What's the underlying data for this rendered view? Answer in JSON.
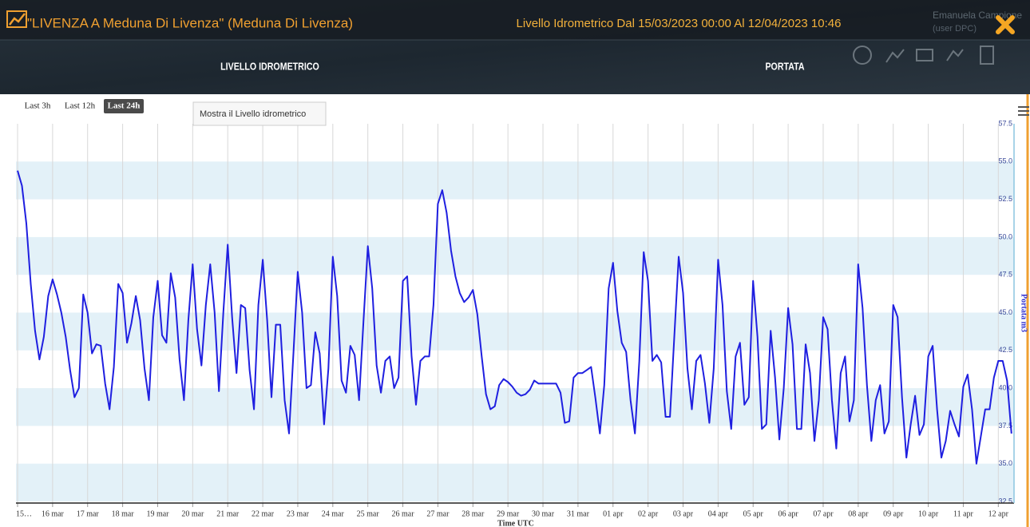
{
  "header": {
    "title": "\"LIVENZA A Meduna Di Livenza\" (Meduna Di Livenza)",
    "subtitle": "Livello Idrometrico Dal 15/03/2023 00:00 Al 12/04/2023 10:46",
    "user": "Emanuela Campione",
    "role": "(user DPC)"
  },
  "tabs": [
    "LIVELLO IDROMETRICO",
    "PORTATA"
  ],
  "range_buttons": [
    "Last 3h",
    "Last 12h",
    "Last 24h"
  ],
  "tooltip": "Mostra il Livello idrometrico",
  "chart_data": {
    "type": "line",
    "x_label": "Time UTC",
    "y_label": "Portata m3",
    "xlim": [
      "15/03/2023 00:00",
      "12/04/2023 10:46"
    ],
    "xticks": [
      {
        "value": "15/03/2023 00:00",
        "label": "15…"
      },
      {
        "value": "16/03/2023 00:00",
        "label": "16 mar"
      },
      {
        "value": "17/03/2023 00:00",
        "label": "17 mar"
      },
      {
        "value": "18/03/2023 00:00",
        "label": "18 mar"
      },
      {
        "value": "19/03/2023 00:00",
        "label": "19 mar"
      },
      {
        "value": "20/03/2023 00:00",
        "label": "20 mar"
      },
      {
        "value": "21/03/2023 00:00",
        "label": "21 mar"
      },
      {
        "value": "22/03/2023 00:00",
        "label": "22 mar"
      },
      {
        "value": "23/03/2023 00:00",
        "label": "23 mar"
      },
      {
        "value": "24/03/2023 00:00",
        "label": "24 mar"
      },
      {
        "value": "25/03/2023 00:00",
        "label": "25 mar"
      },
      {
        "value": "26/03/2023 00:00",
        "label": "26 mar"
      },
      {
        "value": "27/03/2023 00:00",
        "label": "27 mar"
      },
      {
        "value": "28/03/2023 00:00",
        "label": "28 mar"
      },
      {
        "value": "29/03/2023 00:00",
        "label": "29 mar"
      },
      {
        "value": "30/03/2023 00:00",
        "label": "30 mar"
      },
      {
        "value": "31/03/2023 00:00",
        "label": "31 mar"
      },
      {
        "value": "01/04/2023 00:00",
        "label": "01 apr"
      },
      {
        "value": "02/04/2023 00:00",
        "label": "02 apr"
      },
      {
        "value": "03/04/2023 00:00",
        "label": "03 apr"
      },
      {
        "value": "04/04/2023 00:00",
        "label": "04 apr"
      },
      {
        "value": "05/04/2023 00:00",
        "label": "05 apr"
      },
      {
        "value": "06/04/2023 00:00",
        "label": "06 apr"
      },
      {
        "value": "07/04/2023 00:00",
        "label": "07 apr"
      },
      {
        "value": "08/04/2023 00:00",
        "label": "08 apr"
      },
      {
        "value": "09/04/2023 00:00",
        "label": "09 apr"
      },
      {
        "value": "10/04/2023 00:00",
        "label": "10 apr"
      },
      {
        "value": "11/04/2023 00:00",
        "label": "11 apr"
      },
      {
        "value": "12/04/2023 00:00",
        "label": "12 apr"
      }
    ],
    "ylim": [
      32.5,
      57.5
    ],
    "yticks": [
      57.5,
      {
        "value": 55,
        "label": "55.0"
      },
      52.5,
      {
        "value": 50,
        "label": "50.0"
      },
      47.5,
      {
        "value": 45,
        "label": "45.0"
      },
      42.5,
      {
        "value": 40,
        "label": "40.0"
      },
      37.5,
      {
        "value": 35,
        "label": "35.0"
      },
      32.5
    ],
    "grid": true,
    "x": [
      "15/03/2023 00:00",
      "15/03/2023 03:00",
      "15/03/2023 06:00",
      "15/03/2023 09:00",
      "15/03/2023 12:00",
      "15/03/2023 15:00",
      "15/03/2023 18:00",
      "15/03/2023 21:00",
      "16/03/2023 00:00",
      "16/03/2023 03:00",
      "16/03/2023 06:00",
      "16/03/2023 09:00",
      "16/03/2023 12:00",
      "16/03/2023 15:00",
      "16/03/2023 18:00",
      "16/03/2023 21:00",
      "17/03/2023 00:00",
      "17/03/2023 03:00",
      "17/03/2023 06:00",
      "17/03/2023 09:00",
      "17/03/2023 12:00",
      "17/03/2023 15:00",
      "17/03/2023 18:00",
      "17/03/2023 21:00",
      "18/03/2023 00:00",
      "18/03/2023 03:00",
      "18/03/2023 06:00",
      "18/03/2023 09:00",
      "18/03/2023 12:00",
      "18/03/2023 15:00",
      "18/03/2023 18:00",
      "18/03/2023 21:00",
      "19/03/2023 00:00",
      "19/03/2023 03:00",
      "19/03/2023 06:00",
      "19/03/2023 09:00",
      "19/03/2023 12:00",
      "19/03/2023 15:00",
      "19/03/2023 18:00",
      "19/03/2023 21:00",
      "20/03/2023 00:00",
      "20/03/2023 03:00",
      "20/03/2023 06:00",
      "20/03/2023 09:00",
      "20/03/2023 12:00",
      "20/03/2023 15:00",
      "20/03/2023 18:00",
      "20/03/2023 21:00",
      "21/03/2023 00:00",
      "21/03/2023 03:00",
      "21/03/2023 06:00",
      "21/03/2023 09:00",
      "21/03/2023 12:00",
      "21/03/2023 15:00",
      "21/03/2023 18:00",
      "21/03/2023 21:00",
      "22/03/2023 00:00",
      "22/03/2023 03:00",
      "22/03/2023 06:00",
      "22/03/2023 09:00",
      "22/03/2023 12:00",
      "22/03/2023 15:00",
      "22/03/2023 18:00",
      "22/03/2023 21:00",
      "23/03/2023 00:00",
      "23/03/2023 03:00",
      "23/03/2023 06:00",
      "23/03/2023 09:00",
      "23/03/2023 12:00",
      "23/03/2023 15:00",
      "23/03/2023 18:00",
      "23/03/2023 21:00",
      "24/03/2023 00:00",
      "24/03/2023 03:00",
      "24/03/2023 06:00",
      "24/03/2023 09:00",
      "24/03/2023 12:00",
      "24/03/2023 15:00",
      "24/03/2023 18:00",
      "24/03/2023 21:00",
      "25/03/2023 00:00",
      "25/03/2023 03:00",
      "25/03/2023 06:00",
      "25/03/2023 09:00",
      "25/03/2023 12:00",
      "25/03/2023 15:00",
      "25/03/2023 18:00",
      "25/03/2023 21:00",
      "26/03/2023 00:00",
      "26/03/2023 03:00",
      "26/03/2023 06:00",
      "26/03/2023 09:00",
      "26/03/2023 12:00",
      "26/03/2023 15:00",
      "26/03/2023 18:00",
      "26/03/2023 21:00",
      "27/03/2023 00:00",
      "27/03/2023 03:00",
      "27/03/2023 06:00",
      "27/03/2023 09:00",
      "27/03/2023 12:00",
      "27/03/2023 15:00",
      "27/03/2023 18:00",
      "27/03/2023 21:00",
      "28/03/2023 00:00",
      "28/03/2023 03:00",
      "28/03/2023 06:00",
      "28/03/2023 09:00",
      "28/03/2023 12:00",
      "28/03/2023 15:00",
      "28/03/2023 18:00",
      "28/03/2023 21:00",
      "29/03/2023 00:00",
      "29/03/2023 03:00",
      "29/03/2023 06:00",
      "29/03/2023 09:00",
      "29/03/2023 12:00",
      "29/03/2023 15:00",
      "29/03/2023 18:00",
      "29/03/2023 21:00",
      "30/03/2023 00:00",
      "30/03/2023 03:00",
      "30/03/2023 06:00",
      "30/03/2023 09:00",
      "30/03/2023 12:00",
      "30/03/2023 15:00",
      "30/03/2023 18:00",
      "30/03/2023 21:00",
      "31/03/2023 00:00",
      "31/03/2023 03:00",
      "31/03/2023 06:00",
      "31/03/2023 09:00",
      "31/03/2023 12:00",
      "31/03/2023 15:00",
      "31/03/2023 18:00",
      "31/03/2023 21:00",
      "01/04/2023 00:00",
      "01/04/2023 03:00",
      "01/04/2023 06:00",
      "01/04/2023 09:00",
      "01/04/2023 12:00",
      "01/04/2023 15:00",
      "01/04/2023 18:00",
      "01/04/2023 21:00",
      "02/04/2023 00:00",
      "02/04/2023 03:00",
      "02/04/2023 06:00",
      "02/04/2023 09:00",
      "02/04/2023 12:00",
      "02/04/2023 15:00",
      "02/04/2023 18:00",
      "02/04/2023 21:00",
      "03/04/2023 00:00",
      "03/04/2023 03:00",
      "03/04/2023 06:00",
      "03/04/2023 09:00",
      "03/04/2023 12:00",
      "03/04/2023 15:00",
      "03/04/2023 18:00",
      "03/04/2023 21:00",
      "04/04/2023 00:00",
      "04/04/2023 03:00",
      "04/04/2023 06:00",
      "04/04/2023 09:00",
      "04/04/2023 12:00",
      "04/04/2023 15:00",
      "04/04/2023 18:00",
      "04/04/2023 21:00",
      "05/04/2023 00:00",
      "05/04/2023 03:00",
      "05/04/2023 06:00",
      "05/04/2023 09:00",
      "05/04/2023 12:00",
      "05/04/2023 15:00",
      "05/04/2023 18:00",
      "05/04/2023 21:00",
      "06/04/2023 00:00",
      "06/04/2023 03:00",
      "06/04/2023 06:00",
      "06/04/2023 09:00",
      "06/04/2023 12:00",
      "06/04/2023 15:00",
      "06/04/2023 18:00",
      "06/04/2023 21:00",
      "07/04/2023 00:00",
      "07/04/2023 03:00",
      "07/04/2023 06:00",
      "07/04/2023 09:00",
      "07/04/2023 12:00",
      "07/04/2023 15:00",
      "07/04/2023 18:00",
      "07/04/2023 21:00",
      "08/04/2023 00:00",
      "08/04/2023 03:00",
      "08/04/2023 06:00",
      "08/04/2023 09:00",
      "08/04/2023 12:00",
      "08/04/2023 15:00",
      "08/04/2023 18:00",
      "08/04/2023 21:00",
      "09/04/2023 00:00",
      "09/04/2023 03:00",
      "09/04/2023 06:00",
      "09/04/2023 09:00",
      "09/04/2023 12:00",
      "09/04/2023 15:00",
      "09/04/2023 18:00",
      "09/04/2023 21:00",
      "10/04/2023 00:00",
      "10/04/2023 03:00",
      "10/04/2023 06:00",
      "10/04/2023 09:00",
      "10/04/2023 12:00",
      "10/04/2023 15:00",
      "10/04/2023 18:00",
      "10/04/2023 21:00",
      "11/04/2023 00:00",
      "11/04/2023 03:00",
      "11/04/2023 06:00",
      "11/04/2023 09:00",
      "11/04/2023 12:00",
      "11/04/2023 15:00",
      "11/04/2023 18:00",
      "11/04/2023 21:00",
      "12/04/2023 00:00",
      "12/04/2023 03:00",
      "12/04/2023 06:00",
      "12/04/2023 09:00"
    ],
    "series": [
      {
        "color": "#1f1fe0",
        "values": [
          54.4,
          53.4,
          50.9,
          46.9,
          43.8,
          41.9,
          43.4,
          46.1,
          47.2,
          46.2,
          45.0,
          43.4,
          41.2,
          39.4,
          40.0,
          46.2,
          45.0,
          42.3,
          42.9,
          42.8,
          40.3,
          38.6,
          41.4,
          46.9,
          46.3,
          43.0,
          44.3,
          46.1,
          44.5,
          41.3,
          39.2,
          44.7,
          47.1,
          43.5,
          43.0,
          47.6,
          46.0,
          41.9,
          39.2,
          44.5,
          48.2,
          43.9,
          41.5,
          45.5,
          48.2,
          45.0,
          39.8,
          45.0,
          49.5,
          44.7,
          41.0,
          45.5,
          45.3,
          41.2,
          38.6,
          45.5,
          48.5,
          44.5,
          39.4,
          44.2,
          44.2,
          39.2,
          37.0,
          42.3,
          47.7,
          45.0,
          40.0,
          40.2,
          43.7,
          42.3,
          37.6,
          41.3,
          48.7,
          46.1,
          40.5,
          39.7,
          42.8,
          42.2,
          39.2,
          44.4,
          49.4,
          46.6,
          41.5,
          39.7,
          41.8,
          42.1,
          40.0,
          40.7,
          47.1,
          47.4,
          42.1,
          38.9,
          41.8,
          42.1,
          42.1,
          45.5,
          52.2,
          53.1,
          51.6,
          49.1,
          47.4,
          46.3,
          45.7,
          46.0,
          46.5,
          44.9,
          42.1,
          39.6,
          38.6,
          38.8,
          40.2,
          40.6,
          40.4,
          40.1,
          39.7,
          39.5,
          39.6,
          39.9,
          40.5,
          40.3,
          40.3,
          40.3,
          40.3,
          40.3,
          39.7,
          37.7,
          37.8,
          40.7,
          41.0,
          41.0,
          41.2,
          41.4,
          39.3,
          37.0,
          40.2,
          46.6,
          48.3,
          45.1,
          43.0,
          42.4,
          39.2,
          37.0,
          41.8,
          49.0,
          47.1,
          41.8,
          42.2,
          41.7,
          38.1,
          38.1,
          43.4,
          48.7,
          46.3,
          41.3,
          38.6,
          41.8,
          42.2,
          40.3,
          37.7,
          41.3,
          48.5,
          45.5,
          39.8,
          37.3,
          42.1,
          43.0,
          38.9,
          39.4,
          47.1,
          43.4,
          37.3,
          37.6,
          43.8,
          40.7,
          36.6,
          40.0,
          45.3,
          42.9,
          37.3,
          37.3,
          42.9,
          41.0,
          36.5,
          39.2,
          44.7,
          43.9,
          39.2,
          36.0,
          41.0,
          42.1,
          37.8,
          39.2,
          48.2,
          45.3,
          40.2,
          36.5,
          39.2,
          40.2,
          37.0,
          37.8,
          45.5,
          44.7,
          39.4,
          35.4,
          37.6,
          39.5,
          36.9,
          37.6,
          42.1,
          42.8,
          38.6,
          35.4,
          36.5,
          38.5,
          37.6,
          36.8,
          40.1,
          40.9,
          38.6,
          35.0,
          36.8,
          38.6,
          38.6,
          40.7,
          41.8,
          41.8,
          40.5,
          37.0
        ]
      }
    ]
  }
}
